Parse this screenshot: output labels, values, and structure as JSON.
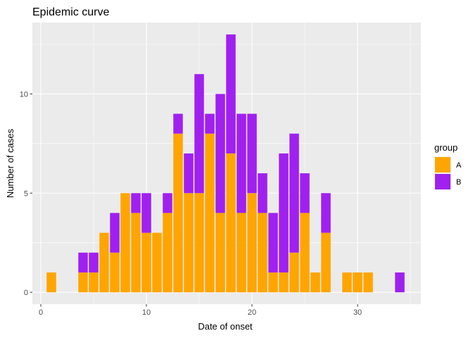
{
  "chart_data": {
    "type": "bar",
    "stacked": true,
    "title": "Epidemic curve",
    "xlabel": "Date of onset",
    "ylabel": "Number of cases",
    "x": [
      1,
      4,
      5,
      6,
      7,
      8,
      9,
      10,
      11,
      12,
      13,
      14,
      15,
      16,
      17,
      18,
      19,
      20,
      21,
      22,
      23,
      24,
      25,
      26,
      27,
      29,
      30,
      31,
      34
    ],
    "series": [
      {
        "name": "A",
        "color": "#FFA500",
        "values": [
          1,
          1,
          1,
          3,
          2,
          5,
          4,
          3,
          3,
          4,
          8,
          5,
          5,
          8,
          4,
          7,
          4,
          5,
          4,
          1,
          1,
          2,
          4,
          1,
          3,
          1,
          1,
          1,
          0
        ]
      },
      {
        "name": "B",
        "color": "#A020F0",
        "values": [
          0,
          1,
          1,
          0,
          2,
          0,
          1,
          2,
          0,
          1,
          1,
          2,
          6,
          1,
          6,
          6,
          5,
          4,
          2,
          3,
          6,
          6,
          2,
          0,
          2,
          0,
          0,
          0,
          1
        ]
      }
    ],
    "xlim": [
      -0.8,
      36
    ],
    "ylim": [
      -0.6,
      13.6
    ],
    "xticks": [
      0,
      10,
      20,
      30
    ],
    "yticks": [
      0,
      5,
      10
    ],
    "xtick_labels": [
      "0",
      "10",
      "20",
      "30"
    ],
    "ytick_labels": [
      "0",
      "5",
      "10"
    ],
    "grid": true,
    "legend": {
      "title": "group",
      "position": "right",
      "entries": [
        "A",
        "B"
      ]
    },
    "panel_background": "#EBEBEB",
    "grid_color": "#FFFFFF"
  }
}
